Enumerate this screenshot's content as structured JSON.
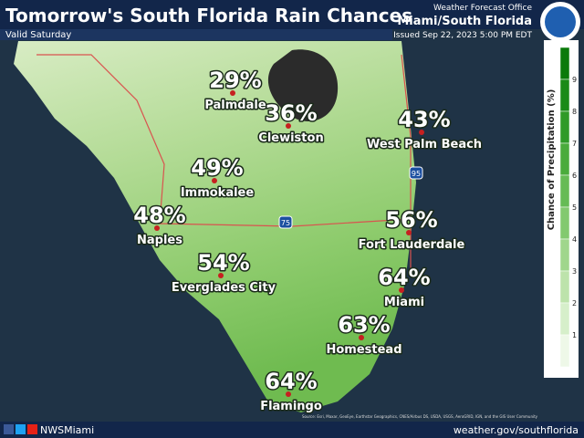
{
  "header": {
    "title": "Tomorrow's South Florida Rain Chances",
    "valid": "Valid Saturday",
    "office_line1": "Weather Forecast Office",
    "office_line2": "Miami/South Florida",
    "issued": "Issued Sep 22, 2023 5:00 PM EDT"
  },
  "cities": [
    {
      "name": "Palmdale",
      "chance": "29%"
    },
    {
      "name": "Clewiston",
      "chance": "36%"
    },
    {
      "name": "West Palm Beach",
      "chance": "43%"
    },
    {
      "name": "Immokalee",
      "chance": "49%"
    },
    {
      "name": "Naples",
      "chance": "48%"
    },
    {
      "name": "Fort Lauderdale",
      "chance": "56%"
    },
    {
      "name": "Everglades City",
      "chance": "54%"
    },
    {
      "name": "Miami",
      "chance": "64%"
    },
    {
      "name": "Homestead",
      "chance": "63%"
    },
    {
      "name": "Flamingo",
      "chance": "64%"
    }
  ],
  "highways": [
    "75",
    "95"
  ],
  "legend": {
    "title": "Chance of Precipitation (%)",
    "ticks": [
      "9",
      "8",
      "7",
      "6",
      "5",
      "4",
      "3",
      "2",
      "1"
    ]
  },
  "attribution": "Source: Esri, Maxar, GeoEye, Earthstar Geographics, CNES/Airbus DS, USDA, USGS, AeroGRID, IGN, and the GIS User Community",
  "footer": {
    "social": "NWSMiami",
    "url": "weather.gov/southflorida"
  }
}
